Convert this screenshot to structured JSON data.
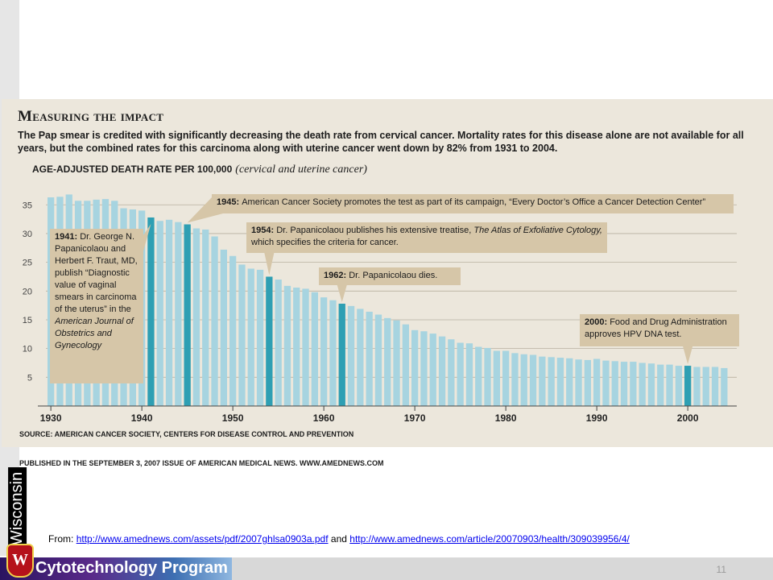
{
  "infographic": {
    "title": "Measuring the impact",
    "description": "The Pap smear is credited with significantly decreasing the death rate from cervical cancer. Mortality rates for this disease alone are not available for all years, but the combined rates for this carcinoma along with uterine cancer went down by 82% from 1931 to 2004.",
    "subtitle_main": "AGE-ADJUSTED DEATH RATE PER 100,000",
    "subtitle_note": "(cervical and uterine cancer)",
    "source": "SOURCE: AMERICAN CANCER SOCIETY, CENTERS FOR DISEASE CONTROL AND PREVENTION",
    "published": "PUBLISHED IN THE SEPTEMBER 3, 2007 ISSUE OF AMERICAN MEDICAL NEWS. WWW.AMEDNEWS.COM"
  },
  "footer": {
    "from_label": "From:",
    "link1": "http://www.amednews.com/assets/pdf/2007ghlsa0903a.pdf",
    "and": "and",
    "link2": "http://www.amednews.com/article/20070903/health/309039956/4/",
    "program": "Cytotechnology Program",
    "crest_letter": "W",
    "vertical_text": "Wisconsin",
    "page_number": "11"
  },
  "colors": {
    "bar": "#a7d4e0",
    "highlight": "#2e9fb3",
    "callout": "#d6c6a8",
    "background": "#ece7dc"
  },
  "chart_data": {
    "type": "bar",
    "x": [
      1930,
      1931,
      1932,
      1933,
      1934,
      1935,
      1936,
      1937,
      1938,
      1939,
      1940,
      1941,
      1942,
      1943,
      1944,
      1945,
      1946,
      1947,
      1948,
      1949,
      1950,
      1951,
      1952,
      1953,
      1954,
      1955,
      1956,
      1957,
      1958,
      1959,
      1960,
      1961,
      1962,
      1963,
      1964,
      1965,
      1966,
      1967,
      1968,
      1969,
      1970,
      1971,
      1972,
      1973,
      1974,
      1975,
      1976,
      1977,
      1978,
      1979,
      1980,
      1981,
      1982,
      1983,
      1984,
      1985,
      1986,
      1987,
      1988,
      1989,
      1990,
      1991,
      1992,
      1993,
      1994,
      1995,
      1996,
      1997,
      1998,
      1999,
      2000,
      2001,
      2002,
      2003,
      2004
    ],
    "values": [
      36.3,
      36.4,
      36.8,
      35.7,
      35.7,
      35.9,
      36.0,
      35.7,
      34.4,
      34.2,
      34.0,
      32.8,
      32.2,
      32.4,
      32.0,
      31.6,
      30.9,
      30.7,
      29.5,
      27.2,
      26.1,
      24.6,
      23.9,
      23.7,
      22.5,
      22.0,
      20.9,
      20.6,
      20.4,
      19.8,
      18.9,
      18.4,
      17.8,
      17.4,
      16.9,
      16.4,
      15.9,
      15.3,
      14.9,
      14.2,
      13.2,
      13.0,
      12.6,
      12.1,
      11.6,
      11.0,
      10.9,
      10.3,
      10.1,
      9.6,
      9.6,
      9.2,
      9.0,
      8.9,
      8.6,
      8.5,
      8.4,
      8.3,
      8.1,
      8.0,
      8.2,
      7.9,
      7.8,
      7.7,
      7.7,
      7.5,
      7.4,
      7.2,
      7.2,
      7.0,
      7.0,
      6.8,
      6.8,
      6.8,
      6.6
    ],
    "highlight_years": [
      1941,
      1945,
      1954,
      1962,
      2000
    ],
    "ylabel": "AGE-ADJUSTED DEATH RATE PER 100,000",
    "yticks": [
      5,
      10,
      15,
      20,
      25,
      30,
      35
    ],
    "xticks": [
      1930,
      1940,
      1950,
      1960,
      1970,
      1980,
      1990,
      2000
    ],
    "grid": "horizontal",
    "annotations": [
      {
        "year": 1941,
        "bold": "1941:",
        "text": "Dr. George N. Papanicolaou and Herbert F. Traut, MD, publish “Diagnostic value of vaginal smears in carcinoma of the uterus” in the",
        "italic": "American Journal of Obstetrics and Gynecology"
      },
      {
        "year": 1945,
        "bold": "1945:",
        "text": "American Cancer Society promotes the test as part of its campaign, “Every Doctor’s Office a Cancer Detection Center”"
      },
      {
        "year": 1954,
        "bold": "1954:",
        "text": "Dr. Papanicolaou publishes his extensive treatise,",
        "italic": "The Atlas of Exfoliative Cytology,",
        "text2": "which specifies the criteria for cancer."
      },
      {
        "year": 1962,
        "bold": "1962:",
        "text": "Dr. Papanicolaou dies."
      },
      {
        "year": 2000,
        "bold": "2000:",
        "text": "Food and Drug Administration approves HPV DNA test."
      }
    ]
  }
}
